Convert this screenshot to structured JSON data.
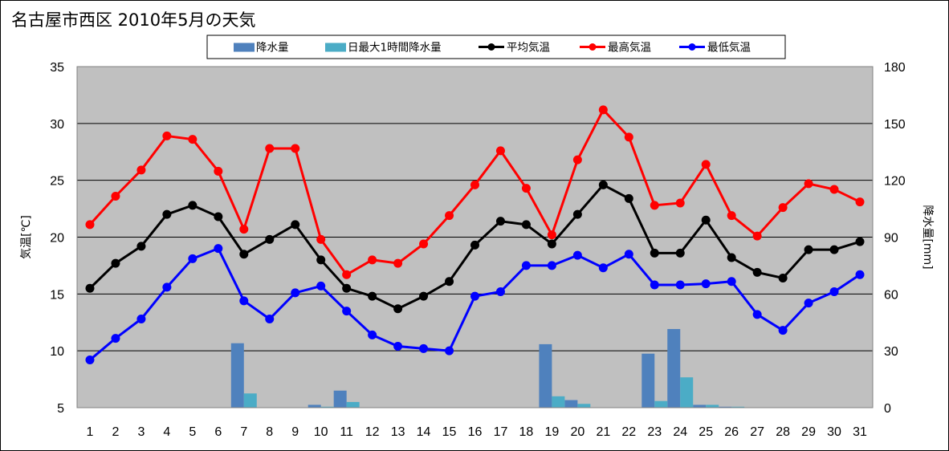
{
  "chart_data": {
    "type": "line",
    "title": "名古屋市西区  2010年5月の天気",
    "ylabel": "気温[℃]",
    "y2label": "降水量[mm]",
    "ylim": [
      5,
      35
    ],
    "y2lim": [
      0,
      180
    ],
    "yticks": [
      5,
      10,
      15,
      20,
      25,
      30,
      35
    ],
    "y2ticks": [
      0,
      30,
      60,
      90,
      120,
      150,
      180
    ],
    "grid": true,
    "legend_position": "top",
    "categories": [
      "1",
      "2",
      "3",
      "4",
      "5",
      "6",
      "7",
      "8",
      "9",
      "10",
      "11",
      "12",
      "13",
      "14",
      "15",
      "16",
      "17",
      "18",
      "19",
      "20",
      "21",
      "22",
      "23",
      "24",
      "25",
      "26",
      "27",
      "28",
      "29",
      "30",
      "31"
    ],
    "bar_series": [
      {
        "name": "降水量",
        "color": "#4f81bd",
        "values": [
          0,
          0,
          0,
          0,
          0,
          0,
          34,
          0,
          0,
          1.5,
          9,
          0,
          0,
          0,
          0,
          0,
          0,
          0,
          33.5,
          4,
          0,
          0,
          28.5,
          41.5,
          1.5,
          0.5,
          0,
          0,
          0,
          0,
          0
        ]
      },
      {
        "name": "日最大1時間降水量",
        "color": "#4bacc6",
        "values": [
          0,
          0,
          0,
          0,
          0,
          0,
          7.5,
          0,
          0,
          0.5,
          3,
          0,
          0,
          0,
          0,
          0,
          0,
          0,
          6,
          2,
          0,
          0,
          3.5,
          16,
          1.5,
          0.5,
          0,
          0,
          0,
          0,
          0
        ]
      }
    ],
    "line_series": [
      {
        "name": "平均気温",
        "color": "#000000",
        "values": [
          15.5,
          17.7,
          19.2,
          22.0,
          22.8,
          21.8,
          18.5,
          19.8,
          21.1,
          18.0,
          15.5,
          14.8,
          13.7,
          14.8,
          16.1,
          19.3,
          21.4,
          21.1,
          19.4,
          22.0,
          24.6,
          23.4,
          18.6,
          18.6,
          21.5,
          18.2,
          16.9,
          16.4,
          18.9,
          18.9,
          19.6
        ]
      },
      {
        "name": "最高気温",
        "color": "#ff0000",
        "values": [
          21.1,
          23.6,
          25.9,
          28.9,
          28.6,
          25.8,
          20.7,
          27.8,
          27.8,
          19.8,
          16.7,
          18.0,
          17.7,
          19.4,
          21.9,
          24.6,
          27.6,
          24.3,
          20.2,
          26.8,
          31.2,
          28.8,
          22.8,
          23.0,
          26.4,
          21.9,
          20.1,
          22.6,
          24.7,
          24.2,
          23.1
        ]
      },
      {
        "name": "最低気温",
        "color": "#0000ff",
        "values": [
          9.2,
          11.1,
          12.8,
          15.6,
          18.1,
          19.0,
          14.4,
          12.8,
          15.1,
          15.7,
          13.5,
          11.4,
          10.4,
          10.2,
          10.0,
          14.8,
          15.2,
          17.5,
          17.5,
          18.4,
          17.3,
          18.5,
          15.8,
          15.8,
          15.9,
          16.1,
          13.2,
          11.8,
          14.2,
          15.2,
          16.7
        ]
      }
    ]
  }
}
